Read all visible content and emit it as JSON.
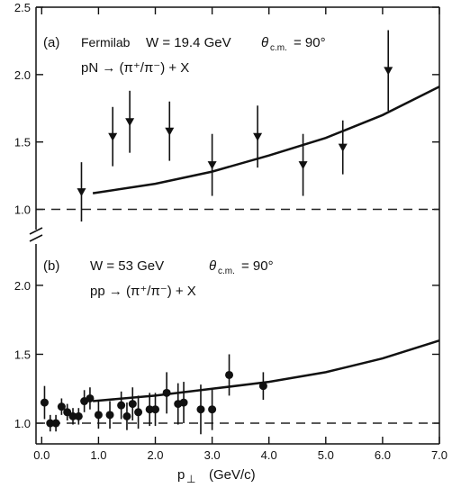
{
  "chart_data": [
    {
      "type": "scatter",
      "panel_label": "(a)",
      "annotation_line1_left": "Fermilab",
      "annotation_line1_mid": "W = 19.4 GeV",
      "annotation_line1_theta": "θ",
      "annotation_line1_sub": "c.m.",
      "annotation_line1_angle": "= 90°",
      "annotation_line2": "pN → (π⁺/π⁻) + X",
      "ylim": [
        0.85,
        2.5
      ],
      "yticks": [
        "1.0",
        "1.5",
        "2.0",
        "2.5"
      ],
      "yticks_values": [
        1.0,
        1.5,
        2.0,
        2.5
      ],
      "reference_line": 1.0,
      "marker": "down-triangle",
      "points": [
        {
          "x": 0.7,
          "y": 1.13,
          "err": 0.22
        },
        {
          "x": 1.25,
          "y": 1.54,
          "err": 0.22
        },
        {
          "x": 1.55,
          "y": 1.65,
          "err": 0.23
        },
        {
          "x": 2.25,
          "y": 1.58,
          "err": 0.22
        },
        {
          "x": 3.0,
          "y": 1.33,
          "err": 0.23
        },
        {
          "x": 3.8,
          "y": 1.54,
          "err": 0.23
        },
        {
          "x": 4.6,
          "y": 1.33,
          "err": 0.23
        },
        {
          "x": 5.3,
          "y": 1.46,
          "err": 0.2
        },
        {
          "x": 6.1,
          "y": 2.03,
          "err": 0.3
        }
      ],
      "curve": {
        "x": [
          0.9,
          2.0,
          3.0,
          4.0,
          5.0,
          6.0,
          7.0
        ],
        "y": [
          1.12,
          1.19,
          1.28,
          1.4,
          1.53,
          1.7,
          1.91
        ]
      }
    },
    {
      "type": "scatter",
      "panel_label": "(b)",
      "annotation_line1_mid": "W = 53 GeV",
      "annotation_line1_theta": "θ",
      "annotation_line1_sub": "c.m.",
      "annotation_line1_angle": "= 90°",
      "annotation_line2": "pp → (π⁺/π⁻) + X",
      "ylim": [
        0.85,
        2.3
      ],
      "yticks": [
        "1.0",
        "1.5",
        "2.0"
      ],
      "yticks_values": [
        1.0,
        1.5,
        2.0
      ],
      "reference_line": 1.0,
      "marker": "filled-circle",
      "points": [
        {
          "x": 0.05,
          "y": 1.15,
          "err": 0.12
        },
        {
          "x": 0.15,
          "y": 1.0,
          "err": 0.06
        },
        {
          "x": 0.25,
          "y": 1.0,
          "err": 0.06
        },
        {
          "x": 0.35,
          "y": 1.12,
          "err": 0.06
        },
        {
          "x": 0.45,
          "y": 1.08,
          "err": 0.06
        },
        {
          "x": 0.55,
          "y": 1.05,
          "err": 0.06
        },
        {
          "x": 0.65,
          "y": 1.05,
          "err": 0.06
        },
        {
          "x": 0.75,
          "y": 1.16,
          "err": 0.08
        },
        {
          "x": 0.85,
          "y": 1.18,
          "err": 0.08
        },
        {
          "x": 1.0,
          "y": 1.06,
          "err": 0.1
        },
        {
          "x": 1.2,
          "y": 1.06,
          "err": 0.1
        },
        {
          "x": 1.4,
          "y": 1.13,
          "err": 0.1
        },
        {
          "x": 1.5,
          "y": 1.05,
          "err": 0.1
        },
        {
          "x": 1.6,
          "y": 1.14,
          "err": 0.12
        },
        {
          "x": 1.7,
          "y": 1.08,
          "err": 0.12
        },
        {
          "x": 1.9,
          "y": 1.1,
          "err": 0.12
        },
        {
          "x": 2.0,
          "y": 1.1,
          "err": 0.12
        },
        {
          "x": 2.2,
          "y": 1.22,
          "err": 0.15
        },
        {
          "x": 2.4,
          "y": 1.14,
          "err": 0.15
        },
        {
          "x": 2.5,
          "y": 1.15,
          "err": 0.15
        },
        {
          "x": 2.8,
          "y": 1.1,
          "err": 0.18
        },
        {
          "x": 3.0,
          "y": 1.1,
          "err": 0.15
        },
        {
          "x": 3.3,
          "y": 1.35,
          "err": 0.15
        },
        {
          "x": 3.9,
          "y": 1.27,
          "err": 0.1
        }
      ],
      "curve": {
        "x": [
          0.9,
          2.0,
          3.0,
          4.0,
          5.0,
          6.0,
          7.0
        ],
        "y": [
          1.16,
          1.2,
          1.25,
          1.3,
          1.37,
          1.47,
          1.6
        ]
      }
    }
  ],
  "x_axis": {
    "label_main": "p",
    "label_sub": "⊥",
    "label_units": "(GeV/c)",
    "xlim": [
      -0.1,
      7.0
    ],
    "ticks": [
      "0.0",
      "1.0",
      "2.0",
      "3.0",
      "4.0",
      "5.0",
      "6.0",
      "7.0"
    ],
    "tick_values": [
      0,
      1,
      2,
      3,
      4,
      5,
      6,
      7
    ]
  }
}
